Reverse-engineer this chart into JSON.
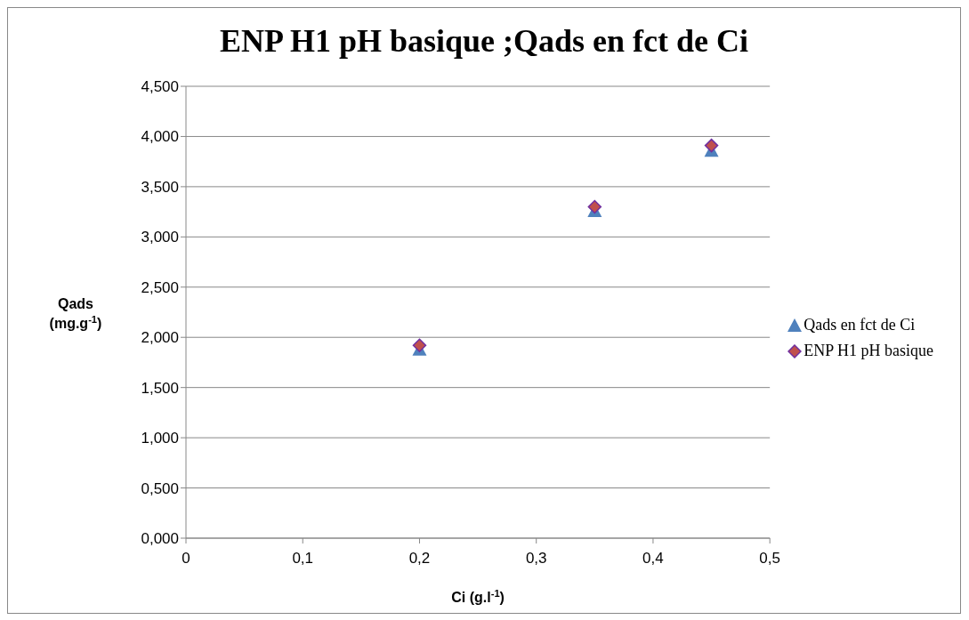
{
  "chart_data": {
    "type": "scatter",
    "title": "ENP H1 pH basique ;Qads en fct de Ci",
    "xlabel": "Ci (g.l$^{-1}$)",
    "ylabel": "Qads (mg.g$^{-1}$)",
    "xlim": [
      0,
      0.5
    ],
    "xticks": [
      0,
      {
        "value": 0.1,
        "label": "0,1"
      },
      {
        "value": 0.2,
        "label": "0,2"
      },
      {
        "value": 0.3,
        "label": "0,3"
      },
      {
        "value": 0.4,
        "label": "0,4"
      },
      {
        "value": 0.5,
        "label": "0,5"
      }
    ],
    "ylim": [
      0,
      4.5
    ],
    "yticks": [
      {
        "value": 0,
        "label": "0,000"
      },
      {
        "value": 0.5,
        "label": "0,500"
      },
      {
        "value": 1,
        "label": "1,000"
      },
      {
        "value": 1.5,
        "label": "1,500"
      },
      {
        "value": 2,
        "label": "2,000"
      },
      {
        "value": 2.5,
        "label": "2,500"
      },
      {
        "value": 3,
        "label": "3,000"
      },
      {
        "value": 3.5,
        "label": "3,500"
      },
      {
        "value": 4,
        "label": "4,000"
      },
      {
        "value": 4.5,
        "label": "4,500"
      }
    ],
    "x": [
      0.2,
      0.35,
      0.45
    ],
    "series": [
      {
        "name": "Qads en fct de Ci",
        "color": "#4f81bd",
        "marker": "triangle",
        "values": [
          1.88,
          3.26,
          3.86
        ]
      },
      {
        "name": "ENP H1 pH basique",
        "color": "#c0504d",
        "marker": "diamond",
        "values": [
          1.92,
          3.3,
          3.91
        ]
      }
    ],
    "grid": "y",
    "legend": "right"
  }
}
